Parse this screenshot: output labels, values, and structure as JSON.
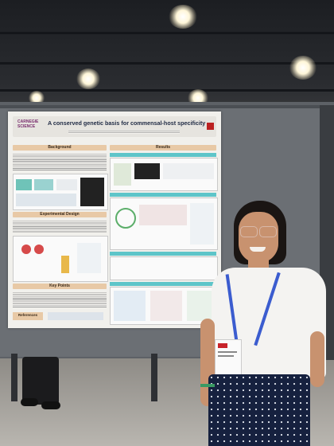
{
  "scene": {
    "description_colors": {
      "board": "#6b6f74",
      "poster_bg": "#f1f0ec",
      "section_header": "#e8c9a6",
      "accent_teal": "#5ec5c9",
      "lanyard": "#3b5ccf"
    }
  },
  "poster": {
    "logo": "CARNEGIE SCIENCE",
    "title": "A conserved genetic basis for commensal-host specificity",
    "sections": {
      "background": "Background",
      "experimental_design": "Experimental Design",
      "key_points": "Key Points",
      "results": "Results",
      "references": "References"
    }
  }
}
